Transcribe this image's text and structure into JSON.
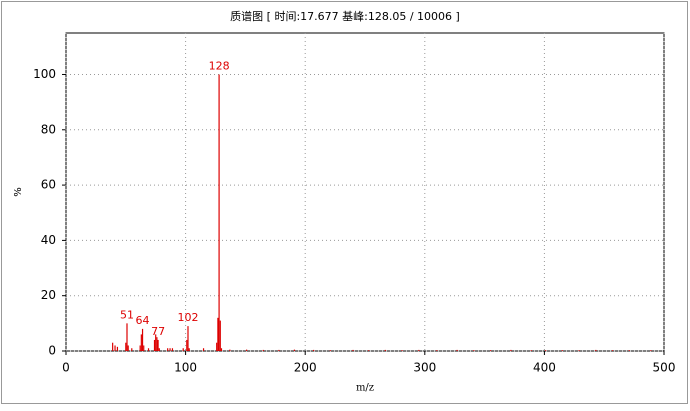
{
  "chart_data": {
    "type": "stem",
    "title": "质谱图 [ 时间:17.677 基峰:128.05 / 10006 ]",
    "xlabel": "m/z",
    "ylabel": "%",
    "x": [
      39,
      41,
      43,
      50,
      51,
      52,
      55,
      62,
      63,
      64,
      65,
      69,
      74,
      75,
      76,
      77,
      78,
      85,
      87,
      89,
      98,
      101,
      102,
      103,
      115,
      126,
      127,
      128,
      129,
      130,
      137,
      151,
      165,
      178,
      191,
      207,
      221,
      240,
      253,
      267,
      281,
      295,
      310,
      327,
      341,
      355,
      372,
      389,
      401,
      415,
      429,
      443,
      457,
      471,
      489
    ],
    "values": [
      3,
      2,
      1.5,
      3,
      10,
      2,
      1,
      2,
      6,
      8,
      2,
      1,
      4,
      6,
      5,
      4,
      1,
      1,
      1,
      1,
      1,
      4,
      9,
      1,
      1,
      3,
      12,
      100,
      11,
      1,
      0.5,
      0.5,
      0.4,
      0.4,
      0.5,
      0.4,
      0.3,
      0.4,
      0.3,
      0.4,
      0.3,
      0.4,
      0.3,
      0.4,
      0.3,
      0.3,
      0.4,
      0.3,
      0.3,
      0.3,
      0.3,
      0.4,
      0.3,
      0.3,
      0.3
    ],
    "color": "#dd0000",
    "annotations": [
      {
        "x": 51,
        "y": 10
      },
      {
        "x": 64,
        "y": 8
      },
      {
        "x": 77,
        "y": 4
      },
      {
        "x": 102,
        "y": 9
      },
      {
        "x": 128,
        "y": 100
      }
    ],
    "xlim": [
      0,
      500
    ],
    "xticks": [
      0,
      100,
      200,
      300,
      400,
      500
    ],
    "ylim": [
      0,
      115
    ],
    "yticks": [
      0,
      20,
      40,
      60,
      80,
      100
    ],
    "grid": true
  }
}
